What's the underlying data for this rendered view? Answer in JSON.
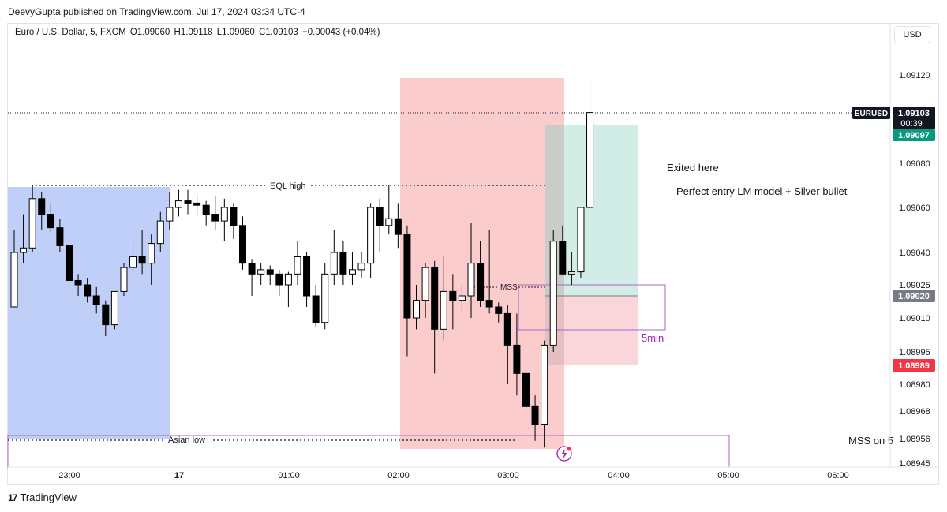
{
  "header": {
    "published": "DeevyGupta published on TradingView.com, Jul 17, 2024 03:34 UTC-4"
  },
  "legend": {
    "symbol": "Euro / U.S. Dollar, 5, FXCM",
    "open": "O1.09060",
    "high": "H1.09118",
    "low": "L1.09060",
    "close": "C1.09103",
    "change": "+0.00043 (+0.04%)"
  },
  "currency_button": "USD",
  "footer": {
    "brand": "TradingView"
  },
  "price_tags": {
    "symbol_tag": "EURUSD",
    "last_price": "1.09103",
    "countdown": "00:39",
    "target_price": "1.09097",
    "entry_price": "1.09020",
    "stop_price": "1.08989"
  },
  "annotations": {
    "eql_high": "EQL high",
    "asian_low": "Asian low",
    "mss": "MSS",
    "five_min": "5min",
    "exited_here": "Exited here",
    "perfect_entry": "Perfect entry LM model + Silver bullet",
    "mss_on_5": "MSS on 5"
  },
  "colors": {
    "up_body": "#ffffff",
    "down_body": "#000000",
    "wick": "#000000",
    "asian_session": "#bcccf7",
    "killzone": "#fbc9c9",
    "profit_zone": "#cdeae3",
    "loss_zone": "#f9d1d7",
    "mss_box": "#b163c8",
    "target_tag": "#089981",
    "entry_tag": "#787b86",
    "stop_tag": "#f23645"
  },
  "chart_data": {
    "type": "candlestick",
    "timeframe": "5",
    "x_ticks": [
      "23:00",
      "17",
      "01:00",
      "02:00",
      "03:00",
      "04:00",
      "05:00",
      "06:00"
    ],
    "y_ticks": [
      "1.09120",
      "1.09080",
      "1.09060",
      "1.09040",
      "1.09025",
      "1.09010",
      "1.08995",
      "1.08980",
      "1.08968",
      "1.08956",
      "1.08945"
    ],
    "ylim": [
      1.08943,
      1.09136
    ],
    "levels": {
      "eql_high": 1.0907,
      "asian_low": 1.08955,
      "last": 1.09103,
      "target": 1.09097,
      "entry": 1.0902,
      "stop": 1.08989
    },
    "candles": [
      {
        "o": 1.09015,
        "h": 1.0905,
        "l": 1.09015,
        "c": 1.0904
      },
      {
        "o": 1.0904,
        "h": 1.09057,
        "l": 1.09035,
        "c": 1.09042
      },
      {
        "o": 1.09042,
        "h": 1.0907,
        "l": 1.0904,
        "c": 1.09064
      },
      {
        "o": 1.09064,
        "h": 1.09067,
        "l": 1.0905,
        "c": 1.09057
      },
      {
        "o": 1.09057,
        "h": 1.09062,
        "l": 1.09049,
        "c": 1.09051
      },
      {
        "o": 1.09051,
        "h": 1.09055,
        "l": 1.0904,
        "c": 1.09043
      },
      {
        "o": 1.09043,
        "h": 1.09046,
        "l": 1.09025,
        "c": 1.09027
      },
      {
        "o": 1.09027,
        "h": 1.0903,
        "l": 1.0902,
        "c": 1.09025
      },
      {
        "o": 1.09025,
        "h": 1.09028,
        "l": 1.09017,
        "c": 1.0902
      },
      {
        "o": 1.0902,
        "h": 1.09024,
        "l": 1.09012,
        "c": 1.09016
      },
      {
        "o": 1.09016,
        "h": 1.09018,
        "l": 1.09002,
        "c": 1.09007
      },
      {
        "o": 1.09007,
        "h": 1.09022,
        "l": 1.09005,
        "c": 1.09022
      },
      {
        "o": 1.09022,
        "h": 1.09035,
        "l": 1.0902,
        "c": 1.09033
      },
      {
        "o": 1.09033,
        "h": 1.09045,
        "l": 1.0903,
        "c": 1.09038
      },
      {
        "o": 1.09038,
        "h": 1.0905,
        "l": 1.0903,
        "c": 1.09035
      },
      {
        "o": 1.09035,
        "h": 1.09048,
        "l": 1.09025,
        "c": 1.09044
      },
      {
        "o": 1.09044,
        "h": 1.09058,
        "l": 1.0904,
        "c": 1.09054
      },
      {
        "o": 1.09054,
        "h": 1.09067,
        "l": 1.0905,
        "c": 1.0906
      },
      {
        "o": 1.0906,
        "h": 1.09068,
        "l": 1.09056,
        "c": 1.09063
      },
      {
        "o": 1.09063,
        "h": 1.09068,
        "l": 1.09057,
        "c": 1.09062
      },
      {
        "o": 1.09062,
        "h": 1.09066,
        "l": 1.09056,
        "c": 1.09061
      },
      {
        "o": 1.09061,
        "h": 1.09063,
        "l": 1.09052,
        "c": 1.09057
      },
      {
        "o": 1.09057,
        "h": 1.09065,
        "l": 1.0905,
        "c": 1.09054
      },
      {
        "o": 1.09054,
        "h": 1.09064,
        "l": 1.09045,
        "c": 1.0906
      },
      {
        "o": 1.0906,
        "h": 1.09062,
        "l": 1.09046,
        "c": 1.09052
      },
      {
        "o": 1.09052,
        "h": 1.09056,
        "l": 1.09032,
        "c": 1.09035
      },
      {
        "o": 1.09035,
        "h": 1.09037,
        "l": 1.0902,
        "c": 1.0903
      },
      {
        "o": 1.0903,
        "h": 1.09035,
        "l": 1.09025,
        "c": 1.09032
      },
      {
        "o": 1.09032,
        "h": 1.09034,
        "l": 1.09025,
        "c": 1.0903
      },
      {
        "o": 1.0903,
        "h": 1.09032,
        "l": 1.0902,
        "c": 1.09025
      },
      {
        "o": 1.09025,
        "h": 1.09031,
        "l": 1.09015,
        "c": 1.0903
      },
      {
        "o": 1.0903,
        "h": 1.09045,
        "l": 1.09025,
        "c": 1.09038
      },
      {
        "o": 1.09038,
        "h": 1.0904,
        "l": 1.09015,
        "c": 1.0902
      },
      {
        "o": 1.0902,
        "h": 1.09025,
        "l": 1.09006,
        "c": 1.09008
      },
      {
        "o": 1.09008,
        "h": 1.09035,
        "l": 1.09005,
        "c": 1.0903
      },
      {
        "o": 1.0903,
        "h": 1.0905,
        "l": 1.09025,
        "c": 1.0904
      },
      {
        "o": 1.0904,
        "h": 1.09045,
        "l": 1.09025,
        "c": 1.0903
      },
      {
        "o": 1.0903,
        "h": 1.0904,
        "l": 1.09025,
        "c": 1.09032
      },
      {
        "o": 1.09032,
        "h": 1.0904,
        "l": 1.09028,
        "c": 1.09035
      },
      {
        "o": 1.09035,
        "h": 1.09062,
        "l": 1.09028,
        "c": 1.0906
      },
      {
        "o": 1.0906,
        "h": 1.09064,
        "l": 1.0904,
        "c": 1.09052
      },
      {
        "o": 1.09052,
        "h": 1.0907,
        "l": 1.09048,
        "c": 1.09055
      },
      {
        "o": 1.09055,
        "h": 1.09062,
        "l": 1.09042,
        "c": 1.09048
      },
      {
        "o": 1.09048,
        "h": 1.09052,
        "l": 1.08993,
        "c": 1.0901
      },
      {
        "o": 1.0901,
        "h": 1.09025,
        "l": 1.09005,
        "c": 1.09018
      },
      {
        "o": 1.09018,
        "h": 1.09035,
        "l": 1.0901,
        "c": 1.09033
      },
      {
        "o": 1.09033,
        "h": 1.09036,
        "l": 1.08985,
        "c": 1.09005
      },
      {
        "o": 1.09005,
        "h": 1.09038,
        "l": 1.09,
        "c": 1.09022
      },
      {
        "o": 1.09022,
        "h": 1.0903,
        "l": 1.09005,
        "c": 1.09018
      },
      {
        "o": 1.09018,
        "h": 1.09025,
        "l": 1.09012,
        "c": 1.0902
      },
      {
        "o": 1.0902,
        "h": 1.09053,
        "l": 1.0901,
        "c": 1.09035
      },
      {
        "o": 1.09035,
        "h": 1.09045,
        "l": 1.09015,
        "c": 1.09018
      },
      {
        "o": 1.09018,
        "h": 1.0905,
        "l": 1.09012,
        "c": 1.09015
      },
      {
        "o": 1.09015,
        "h": 1.09017,
        "l": 1.09008,
        "c": 1.09012
      },
      {
        "o": 1.09012,
        "h": 1.09016,
        "l": 1.0898,
        "c": 1.08998
      },
      {
        "o": 1.08998,
        "h": 1.09012,
        "l": 1.08975,
        "c": 1.08985
      },
      {
        "o": 1.08985,
        "h": 1.08987,
        "l": 1.08962,
        "c": 1.0897
      },
      {
        "o": 1.0897,
        "h": 1.08975,
        "l": 1.08955,
        "c": 1.08962
      },
      {
        "o": 1.08962,
        "h": 1.09,
        "l": 1.08952,
        "c": 1.08998
      },
      {
        "o": 1.08998,
        "h": 1.0905,
        "l": 1.08995,
        "c": 1.09045
      },
      {
        "o": 1.09045,
        "h": 1.09052,
        "l": 1.0903,
        "c": 1.0903
      },
      {
        "o": 1.0903,
        "h": 1.0904,
        "l": 1.09025,
        "c": 1.09031
      },
      {
        "o": 1.09031,
        "h": 1.0906,
        "l": 1.09028,
        "c": 1.0906
      },
      {
        "o": 1.0906,
        "h": 1.09118,
        "l": 1.0906,
        "c": 1.09103
      }
    ]
  }
}
